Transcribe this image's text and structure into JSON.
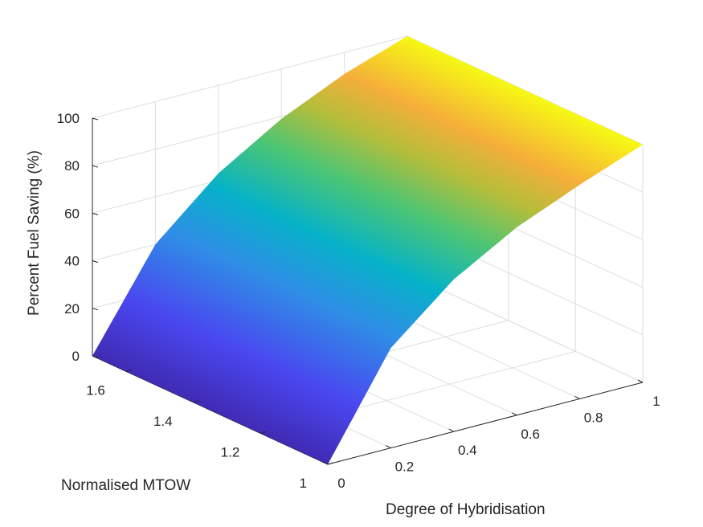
{
  "chart_data": {
    "type": "surface",
    "title": "",
    "xlabel": "Degree of Hybridisation",
    "ylabel": "Normalised MTOW",
    "zlabel": "Percent Fuel Saving (%)",
    "xlim": [
      0,
      1
    ],
    "ylim": [
      1,
      1.7
    ],
    "zlim": [
      0,
      100
    ],
    "x_ticks": [
      0,
      0.2,
      0.4,
      0.6,
      0.8,
      1
    ],
    "x_tick_labels": [
      "0",
      "0.2",
      "0.4",
      "0.6",
      "0.8",
      "1"
    ],
    "y_ticks": [
      1,
      1.2,
      1.4,
      1.6
    ],
    "y_tick_labels": [
      "1",
      "1.2",
      "1.4",
      "1.6"
    ],
    "z_ticks": [
      0,
      20,
      40,
      60,
      80,
      100
    ],
    "z_tick_labels": [
      "0",
      "20",
      "40",
      "60",
      "80",
      "100"
    ],
    "grid": true,
    "colormap": "parula",
    "surface_points": [
      {
        "x": 0.0,
        "y": 1.0,
        "z": 0
      },
      {
        "x": 0.2,
        "y": 1.0,
        "z": 42
      },
      {
        "x": 0.4,
        "y": 1.0,
        "z": 64
      },
      {
        "x": 0.6,
        "y": 1.0,
        "z": 79
      },
      {
        "x": 0.8,
        "y": 1.0,
        "z": 90
      },
      {
        "x": 1.0,
        "y": 1.0,
        "z": 100
      },
      {
        "x": 0.0,
        "y": 1.7,
        "z": 0
      },
      {
        "x": 0.2,
        "y": 1.7,
        "z": 40
      },
      {
        "x": 0.4,
        "y": 1.7,
        "z": 63
      },
      {
        "x": 0.6,
        "y": 1.7,
        "z": 79
      },
      {
        "x": 0.8,
        "y": 1.7,
        "z": 91
      },
      {
        "x": 1.0,
        "y": 1.7,
        "z": 100
      }
    ]
  }
}
